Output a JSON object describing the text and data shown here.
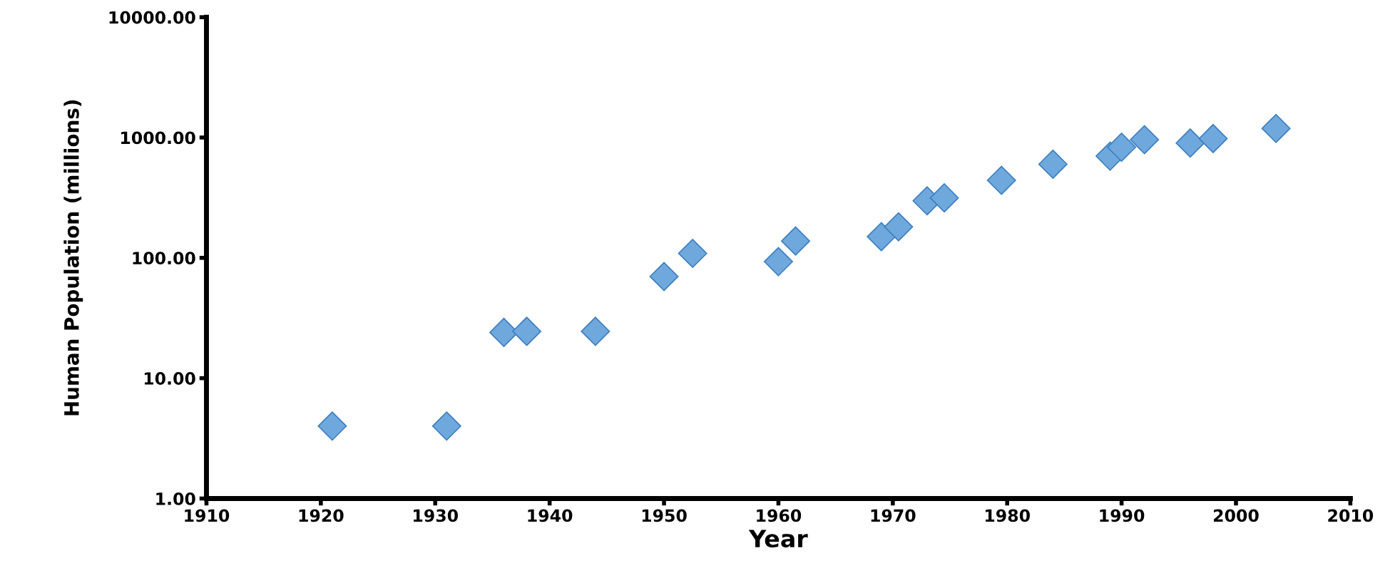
{
  "chart_data": {
    "type": "scatter",
    "xlabel": "Year",
    "ylabel": "Human Population (millions)",
    "log": "y",
    "marker": "diamond",
    "grid": false,
    "legend": false,
    "xlim": [
      1910,
      2010
    ],
    "xticks": [
      1910,
      1920,
      1930,
      1940,
      1950,
      1960,
      1970,
      1980,
      1990,
      2000,
      2010
    ],
    "ylim": [
      1,
      10000
    ],
    "yticks": [
      {
        "value": 1,
        "label": "1.00"
      },
      {
        "value": 10,
        "label": "10.00"
      },
      {
        "value": 100,
        "label": "100.00"
      },
      {
        "value": 1000,
        "label": "1000.00"
      },
      {
        "value": 10000,
        "label": "10000.00"
      }
    ],
    "series": [
      {
        "color": "#6fa8dc",
        "x": [
          1921,
          1931,
          1936,
          1938,
          1944,
          1950,
          1952.5,
          1960,
          1961.5,
          1969,
          1970.5,
          1973,
          1974.5,
          1979.5,
          1984,
          1989,
          1990,
          1992,
          1996,
          1998,
          2003.5
        ],
        "values": [
          4,
          4,
          24,
          24.5,
          24.5,
          70,
          109,
          93,
          138,
          150,
          181,
          298,
          315,
          441,
          600,
          700,
          830,
          960,
          900,
          980,
          1190
        ]
      }
    ]
  }
}
